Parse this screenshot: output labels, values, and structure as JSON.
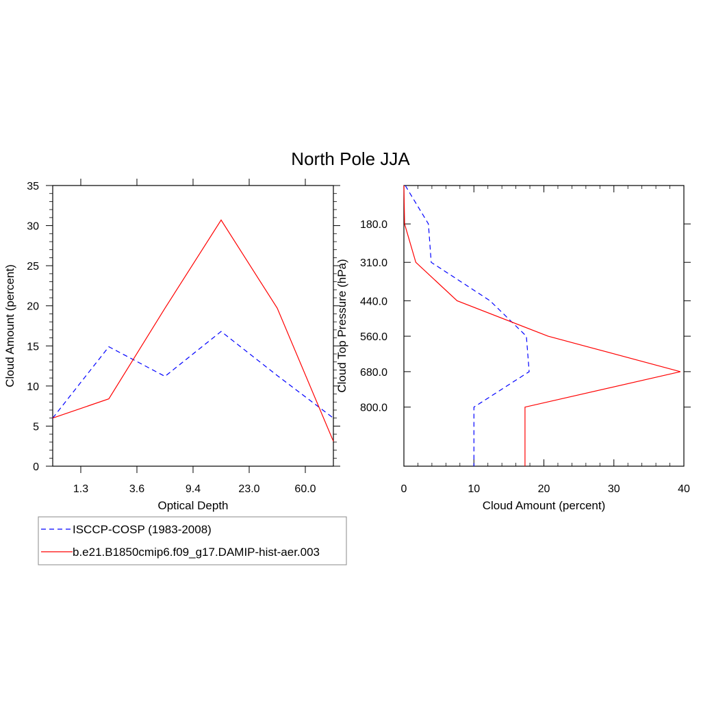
{
  "figure": {
    "title": "North Pole JJA"
  },
  "chart_data": [
    {
      "type": "line",
      "xlabel": "Optical Depth",
      "ylabel": "Cloud Amount (percent)",
      "ylim": [
        0,
        35
      ],
      "yticks": [
        "0",
        "5",
        "10",
        "15",
        "20",
        "25",
        "30",
        "35"
      ],
      "xlim": [
        0.5,
        5.5
      ],
      "xticks": [
        {
          "label": "1.3",
          "x": 1
        },
        {
          "label": "3.6",
          "x": 2
        },
        {
          "label": "9.4",
          "x": 3
        },
        {
          "label": "23.0",
          "x": 4
        },
        {
          "label": "60.0",
          "x": 5
        }
      ],
      "x": [
        0.5,
        1.5,
        2.5,
        3.5,
        4.5,
        5.5
      ],
      "series": [
        {
          "name": "ISCCP-COSP (1983-2008)",
          "color": "#0000ff",
          "dash": "dashed",
          "values": [
            6.0,
            14.9,
            11.2,
            16.8,
            11.3,
            6.0
          ]
        },
        {
          "name": "b.e21.B1850cmip6.f09_g17.DAMIP-hist-aer.003",
          "color": "#ff0000",
          "dash": "solid",
          "values": [
            6.0,
            8.4,
            19.7,
            30.7,
            19.7,
            3.1
          ]
        }
      ],
      "grid": false
    },
    {
      "type": "line",
      "orientation": "horizontal",
      "xlabel": "Cloud Amount (percent)",
      "ylabel": "Cloud Top Pressure (hPa)",
      "xlim": [
        0,
        40
      ],
      "xticks": [
        "0",
        "10",
        "20",
        "30",
        "40"
      ],
      "ylim": [
        50,
        1000
      ],
      "yticks": [
        {
          "label": "180.0",
          "y": 180
        },
        {
          "label": "310.0",
          "y": 310
        },
        {
          "label": "440.0",
          "y": 440
        },
        {
          "label": "560.0",
          "y": 560
        },
        {
          "label": "680.0",
          "y": 680
        },
        {
          "label": "800.0",
          "y": 800
        }
      ],
      "pressure": [
        50,
        180,
        310,
        440,
        560,
        680,
        800,
        1000
      ],
      "series": [
        {
          "name": "ISCCP-COSP (1983-2008)",
          "color": "#0000ff",
          "dash": "dashed",
          "values": [
            0.2,
            3.5,
            3.9,
            12.3,
            17.5,
            17.9,
            10.0,
            10.0
          ]
        },
        {
          "name": "b.e21.B1850cmip6.f09_g17.DAMIP-hist-aer.003",
          "color": "#ff0000",
          "dash": "solid",
          "values": [
            0.0,
            0.1,
            1.7,
            7.6,
            20.6,
            39.5,
            17.3,
            17.3
          ]
        }
      ],
      "grid": false
    }
  ],
  "legend": {
    "placement": "bottom-left",
    "items": [
      {
        "label": "ISCCP-COSP (1983-2008)",
        "color": "#0000ff",
        "dash": "dashed"
      },
      {
        "label": "b.e21.B1850cmip6.f09_g17.DAMIP-hist-aer.003",
        "color": "#ff0000",
        "dash": "solid"
      }
    ]
  }
}
